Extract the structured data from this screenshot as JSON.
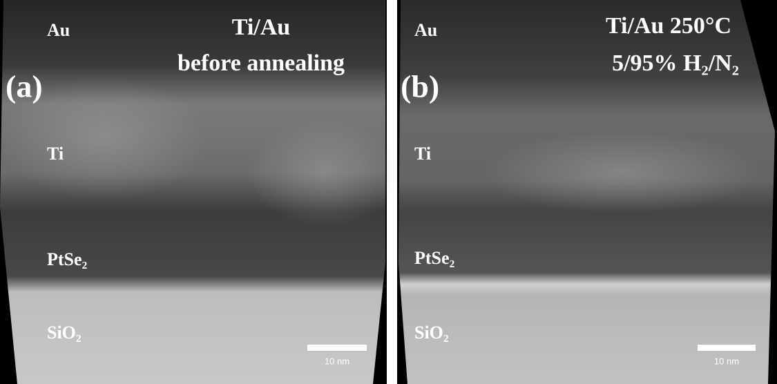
{
  "panels": [
    {
      "label": "(a)",
      "title": [
        "Ti/Au",
        "before annealing"
      ],
      "layers": [
        "Au",
        "Ti",
        "PtSe₂",
        "SiO₂"
      ],
      "scale_bar": "10 nm"
    },
    {
      "label": "(b)",
      "title": [
        "Ti/Au 250°C",
        "5/95% H₂/N₂"
      ],
      "layers": [
        "Au",
        "Ti",
        "PtSe₂",
        "SiO₂"
      ],
      "scale_bar": "10 nm"
    }
  ]
}
